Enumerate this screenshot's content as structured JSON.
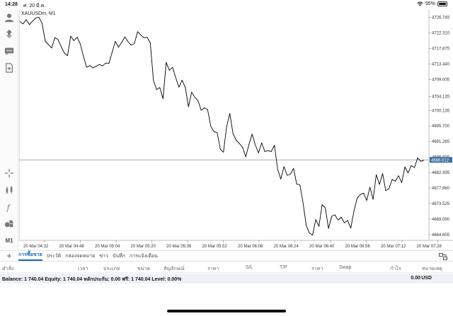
{
  "status_bar": {
    "time": "14:28",
    "date": "ศ. 20 มี.ค.",
    "battery": "95%"
  },
  "chart": {
    "symbol": "XAUUSDm, M1",
    "current_price": "4686.012",
    "line_color": "#000000",
    "current_line_color": "#9e9e9e",
    "current_tag_color": "#3f6fa8"
  },
  "left_toolbar": {
    "timeframe": "M1",
    "icons": [
      "account-icon",
      "trade-icon",
      "chat-icon",
      "add-document-icon",
      "crosshair-icon",
      "indicators-icon",
      "function-icon",
      "objects-icon"
    ]
  },
  "chart_data": {
    "type": "line",
    "price_ticks": [
      "4726.745",
      "4722.310",
      "4717.875",
      "4713.440",
      "4709.005",
      "4704.135",
      "4700.135",
      "4695.700",
      "4691.265",
      "4686.830",
      "4682.395",
      "4677.960",
      "4673.525",
      "4669.090",
      "4664.655"
    ],
    "time_ticks": [
      "20 Mar 04:32",
      "20 Mar 04:48",
      "20 Mar 05:04",
      "20 Mar 05:20",
      "20 Mar 05:36",
      "20 Mar 05:52",
      "20 Mar 06:08",
      "20 Mar 06:24",
      "20 Mar 06:40",
      "20 Mar 06:56",
      "20 Mar 07:12",
      "20 Mar 07:28"
    ],
    "ylim": [
      4663.0,
      4728.5
    ],
    "y": [
      4725.6,
      4724.9,
      4726.1,
      4724.7,
      4725.7,
      4726.6,
      4726.8,
      4725.0,
      4719.9,
      4719.0,
      4718.0,
      4721.0,
      4720.4,
      4718.4,
      4716.6,
      4715.8,
      4721.4,
      4720.1,
      4721.1,
      4719.2,
      4715.6,
      4712.5,
      4713.0,
      4712.3,
      4712.8,
      4713.3,
      4712.9,
      4713.7,
      4713.6,
      4716.8,
      4719.9,
      4718.2,
      4719.6,
      4721.2,
      4719.8,
      4718.8,
      4719.3,
      4722.7,
      4721.7,
      4720.9,
      4721.1,
      4719.5,
      4708.7,
      4706.1,
      4706.7,
      4703.5,
      4713.9,
      4711.6,
      4712.5,
      4709.5,
      4706.8,
      4708.8,
      4706.7,
      4701.2,
      4705.4,
      4703.9,
      4702.9,
      4700.2,
      4700.9,
      4700.4,
      4695.6,
      4694.1,
      4693.8,
      4689.0,
      4688.2,
      4695.5,
      4699.3,
      4693.5,
      4691.6,
      4690.7,
      4689.6,
      4686.9,
      4690.4,
      4693.4,
      4690.3,
      4688.0,
      4690.9,
      4688.4,
      4688.7,
      4688.4,
      4690.2,
      4683.4,
      4680.5,
      4684.1,
      4681.6,
      4681.9,
      4683.6,
      4679.1,
      4678.9,
      4673.8,
      4667.3,
      4665.1,
      4664.5,
      4669.0,
      4667.0,
      4673.2,
      4672.3,
      4666.4,
      4669.9,
      4670.3,
      4668.8,
      4669.6,
      4668.0,
      4668.7,
      4666.5,
      4671.4,
      4675.1,
      4676.1,
      4676.5,
      4674.4,
      4678.2,
      4674.7,
      4681.8,
      4679.0,
      4682.1,
      4677.2,
      4677.8,
      4680.4,
      4679.9,
      4681.5,
      4679.5,
      4684.0,
      4682.3,
      4684.4,
      4683.8,
      4686.6,
      4685.6,
      4685.9
    ]
  },
  "tabs": {
    "items": [
      "การซื้อขาย",
      "ประวัติ",
      "กล่องจดหมาย",
      "ข่าว",
      "บันทึก",
      "การแจ้งเตือน"
    ],
    "active_index": 0
  },
  "columns": [
    "คำสั่ง",
    "เวลา",
    "ประเภท",
    "ขนาด",
    "สัญลักษณ์",
    "ราคา",
    "S/L",
    "T/P",
    "ราคา",
    "Swap",
    "กำไร",
    "หมายเหตุ"
  ],
  "balance_row": {
    "text": "Balance: 1 740.04 Equity: 1 740.04 หลักประกัน: 0.00 ฟรี: 1 740.04 Level: 0.00%",
    "profit": "0.00",
    "currency": "USD"
  }
}
